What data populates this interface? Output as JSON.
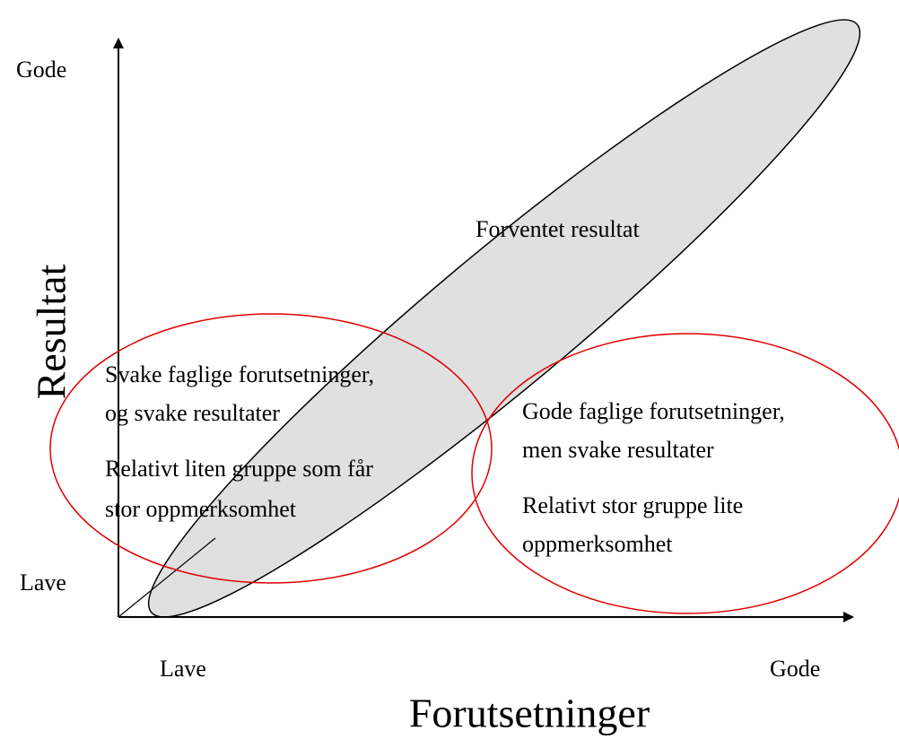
{
  "axes": {
    "y": {
      "label": "Resultat",
      "high": "Gode",
      "low": "Lave"
    },
    "x": {
      "label": "Forutsetninger",
      "low": "Lave",
      "high": "Gode"
    }
  },
  "regions": [
    {
      "label": "Forventet resultat"
    },
    {
      "lines": [
        "Svake faglige forutsetninger,",
        "og svake resultater"
      ],
      "note": [
        "Relativt liten gruppe som får",
        "stor oppmerksomhet"
      ]
    },
    {
      "lines": [
        "Gode faglige forutsetninger,",
        "men svake resultater"
      ],
      "note": [
        "Relativt stor gruppe lite",
        "oppmerksomhet"
      ]
    }
  ]
}
